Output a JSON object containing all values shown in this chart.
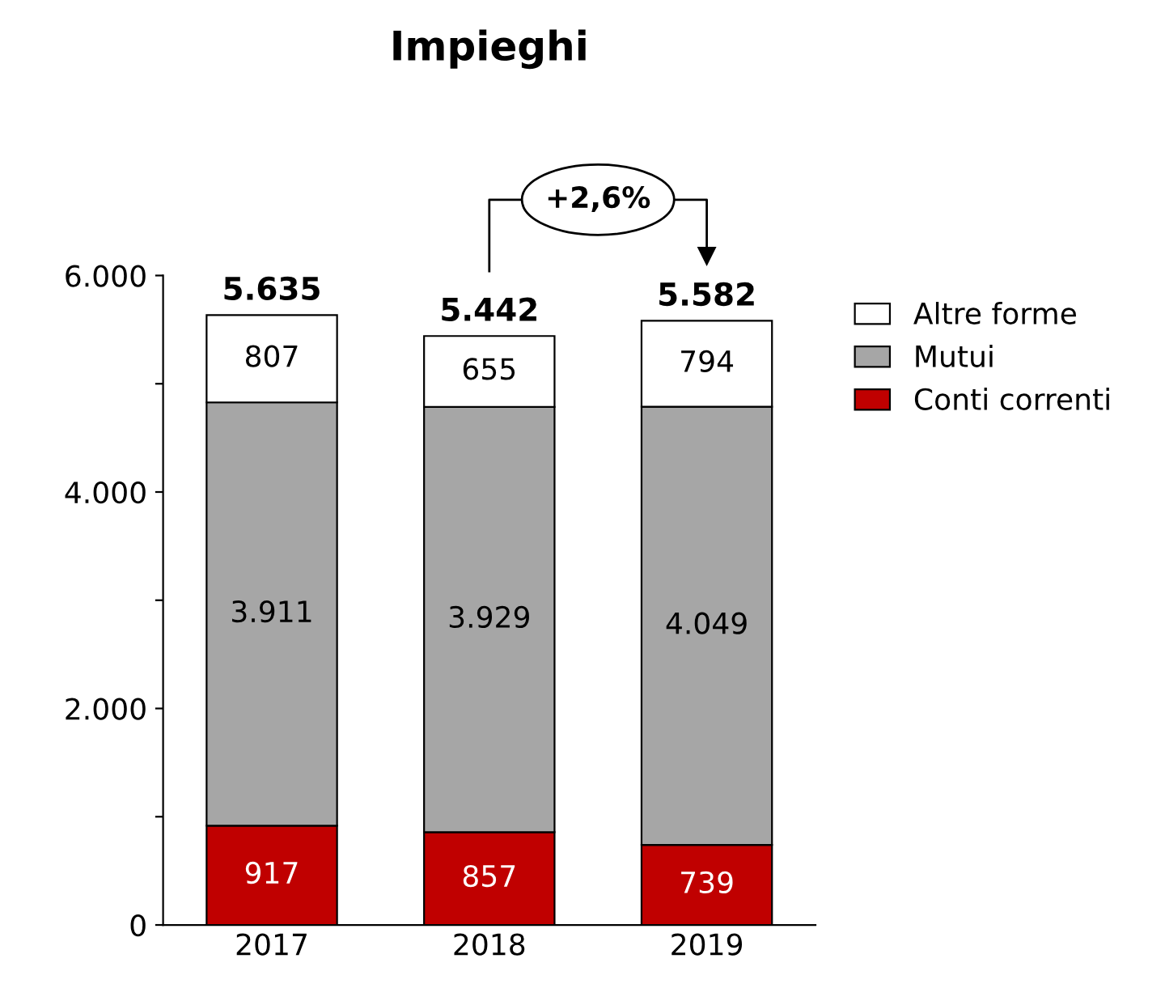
{
  "chart_data": {
    "type": "bar",
    "title": "Impieghi",
    "stacked": true,
    "categories": [
      "2017",
      "2018",
      "2019"
    ],
    "series": [
      {
        "name": "Conti correnti",
        "color": "#c00000",
        "values": [
          917,
          857,
          739
        ],
        "value_labels": [
          "917",
          "857",
          "739"
        ]
      },
      {
        "name": "Mutui",
        "color": "#a6a6a6",
        "values": [
          3911,
          3929,
          4049
        ],
        "value_labels": [
          "3.911",
          "3.929",
          "4.049"
        ]
      },
      {
        "name": "Altre forme",
        "color": "#ffffff",
        "values": [
          807,
          655,
          794
        ],
        "value_labels": [
          "807",
          "655",
          "794"
        ]
      }
    ],
    "totals": [
      "5.635",
      "5.442",
      "5.582"
    ],
    "ylim": [
      0,
      6000
    ],
    "yticks": [
      {
        "value": 0,
        "label": "0"
      },
      {
        "value": 1000,
        "label": null
      },
      {
        "value": 2000,
        "label": "2.000"
      },
      {
        "value": 3000,
        "label": null
      },
      {
        "value": 4000,
        "label": "4.000"
      },
      {
        "value": 5000,
        "label": null
      },
      {
        "value": 6000,
        "label": "6.000"
      }
    ],
    "grid": false,
    "legend": "right",
    "annotations": [
      "+2,6%"
    ]
  }
}
